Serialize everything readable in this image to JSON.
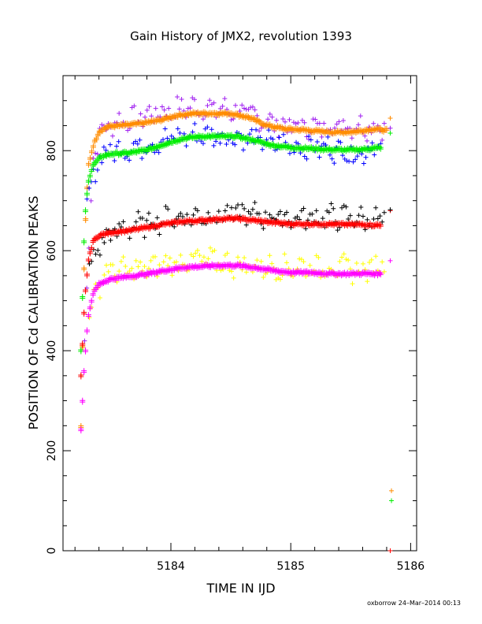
{
  "chart_data": {
    "type": "scatter",
    "title": "Gain History of JMX2, revolution 1393",
    "xlabel": "TIME IN IJD",
    "ylabel": "POSITION OF Cd CALIBRATION PEAKS",
    "xlim": [
      5183.1,
      5186.05
    ],
    "ylim": [
      0,
      950
    ],
    "xticks": [
      5184,
      5185,
      5186
    ],
    "yticks": [
      0,
      200,
      400,
      600,
      800
    ],
    "grid": false,
    "legend": "none",
    "series": [
      {
        "color": "#a020f0",
        "style": "noisy",
        "x": [
          5183.28,
          5183.35,
          5183.42,
          5183.55,
          5183.7,
          5183.85,
          5184.0,
          5184.15,
          5184.3,
          5184.45,
          5184.6,
          5184.75,
          5184.9,
          5185.05,
          5185.2,
          5185.35,
          5185.5,
          5185.65,
          5185.78
        ],
        "values": [
          420,
          790,
          840,
          858,
          862,
          875,
          880,
          888,
          885,
          882,
          878,
          862,
          852,
          848,
          846,
          850,
          852,
          848,
          850
        ]
      },
      {
        "color": "#ff8c00",
        "style": "smooth",
        "x": [
          5183.25,
          5183.28,
          5183.31,
          5183.35,
          5183.4,
          5183.48,
          5183.6,
          5183.75,
          5183.9,
          5184.05,
          5184.2,
          5184.35,
          5184.5,
          5184.65,
          5184.8,
          5184.95,
          5185.1,
          5185.25,
          5185.4,
          5185.55,
          5185.7,
          5185.8
        ],
        "values": [
          250,
          620,
          770,
          810,
          840,
          850,
          852,
          856,
          862,
          872,
          876,
          876,
          876,
          868,
          852,
          845,
          843,
          840,
          838,
          840,
          845,
          842
        ]
      },
      {
        "color": "#0000ff",
        "style": "noisy",
        "x": [
          5183.3,
          5183.4,
          5183.5,
          5183.65,
          5183.8,
          5183.95,
          5184.1,
          5184.25,
          5184.4,
          5184.55,
          5184.7,
          5184.85,
          5185.0,
          5185.15,
          5185.3,
          5185.45,
          5185.55,
          5185.65,
          5185.75
        ],
        "values": [
          690,
          790,
          800,
          805,
          812,
          822,
          828,
          832,
          830,
          828,
          822,
          815,
          810,
          808,
          806,
          800,
          790,
          805,
          812
        ]
      },
      {
        "color": "#00ee00",
        "style": "smooth",
        "x": [
          5183.25,
          5183.28,
          5183.31,
          5183.35,
          5183.42,
          5183.5,
          5183.65,
          5183.8,
          5183.95,
          5184.1,
          5184.25,
          5184.4,
          5184.55,
          5184.7,
          5184.85,
          5185.0,
          5185.15,
          5185.3,
          5185.45,
          5185.6,
          5185.75
        ],
        "values": [
          400,
          660,
          740,
          772,
          790,
          795,
          797,
          803,
          815,
          826,
          830,
          830,
          830,
          822,
          812,
          808,
          806,
          804,
          803,
          804,
          808
        ]
      },
      {
        "color": "#000000",
        "style": "noisy",
        "x": [
          5183.32,
          5183.42,
          5183.55,
          5183.7,
          5183.85,
          5184.0,
          5184.15,
          5184.3,
          5184.45,
          5184.6,
          5184.75,
          5184.9,
          5185.05,
          5185.2,
          5185.35,
          5185.5,
          5185.65,
          5185.78
        ],
        "values": [
          560,
          620,
          640,
          650,
          658,
          665,
          668,
          670,
          672,
          675,
          670,
          667,
          665,
          667,
          668,
          666,
          662,
          665
        ]
      },
      {
        "color": "#ff0000",
        "style": "smooth",
        "x": [
          5183.25,
          5183.28,
          5183.31,
          5183.35,
          5183.4,
          5183.5,
          5183.65,
          5183.8,
          5183.95,
          5184.1,
          5184.25,
          5184.4,
          5184.55,
          5184.7,
          5184.85,
          5185.0,
          5185.15,
          5185.3,
          5185.45,
          5185.6,
          5185.75
        ],
        "values": [
          350,
          500,
          580,
          620,
          632,
          638,
          642,
          648,
          655,
          660,
          662,
          665,
          666,
          662,
          658,
          655,
          655,
          655,
          654,
          654,
          652
        ]
      },
      {
        "color": "#ffff00",
        "style": "noisy",
        "x": [
          5183.32,
          5183.45,
          5183.6,
          5183.75,
          5183.9,
          5184.05,
          5184.2,
          5184.35,
          5184.5,
          5184.65,
          5184.8,
          5184.95,
          5185.1,
          5185.25,
          5185.4,
          5185.55,
          5185.7,
          5185.78
        ],
        "values": [
          480,
          560,
          560,
          562,
          570,
          576,
          582,
          580,
          572,
          570,
          568,
          566,
          570,
          566,
          568,
          560,
          566,
          580
        ]
      },
      {
        "color": "#ff00ff",
        "style": "smooth",
        "x": [
          5183.25,
          5183.28,
          5183.31,
          5183.35,
          5183.4,
          5183.5,
          5183.65,
          5183.8,
          5183.95,
          5184.1,
          5184.25,
          5184.4,
          5184.55,
          5184.7,
          5184.85,
          5185.0,
          5185.15,
          5185.3,
          5185.45,
          5185.6,
          5185.75
        ],
        "values": [
          245,
          380,
          470,
          515,
          535,
          545,
          550,
          555,
          562,
          568,
          570,
          572,
          572,
          568,
          562,
          558,
          558,
          556,
          555,
          556,
          555
        ]
      }
    ],
    "end_markers": [
      {
        "color": "#ff8c00",
        "x": 5185.83,
        "y": 865
      },
      {
        "color": "#00ee00",
        "x": 5185.83,
        "y": 835
      },
      {
        "color": "#a020f0",
        "x": 5185.83,
        "y": 845
      },
      {
        "color": "#ff0000",
        "x": 5185.83,
        "y": 680
      },
      {
        "color": "#000000",
        "x": 5185.83,
        "y": 682
      },
      {
        "color": "#ff00ff",
        "x": 5185.83,
        "y": 580
      },
      {
        "color": "#ff8c00",
        "x": 5185.84,
        "y": 120
      },
      {
        "color": "#00ee00",
        "x": 5185.84,
        "y": 100
      },
      {
        "color": "#ff0000",
        "x": 5185.83,
        "y": 0
      }
    ]
  },
  "footer": "oxborrow 24–Mar–2014 00:13"
}
